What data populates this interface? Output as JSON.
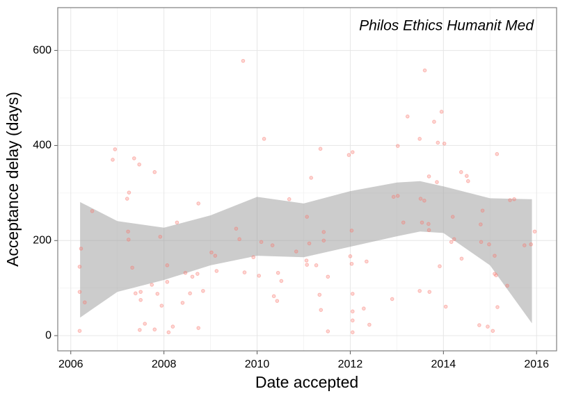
{
  "chart_data": {
    "type": "scatter",
    "annotation": "Philos Ethics Humanit Med",
    "x_label": "Date accepted",
    "y_label": "Acceptance delay (days)",
    "xlim": [
      2005.72,
      2016.43
    ],
    "ylim": [
      -32,
      690
    ],
    "xticks": [
      2006,
      2008,
      2010,
      2012,
      2014,
      2016
    ],
    "yticks": [
      0,
      200,
      400,
      600
    ],
    "x_minor_ticks": [
      2007,
      2009,
      2011,
      2013,
      2015
    ],
    "y_minor_ticks": [
      100,
      300,
      500
    ],
    "grid": true,
    "color": "#f8766d",
    "x": [
      2006.19,
      2006.19,
      2006.22,
      2006.19,
      2006.3,
      2006.46,
      2006.9,
      2006.95,
      2007.21,
      2007.25,
      2007.23,
      2007.24,
      2007.32,
      2007.36,
      2007.39,
      2007.47,
      2007.48,
      2007.5,
      2007.5,
      2007.59,
      2007.74,
      2007.8,
      2007.8,
      2007.86,
      2007.92,
      2007.95,
      2008.07,
      2008.07,
      2008.1,
      2008.19,
      2008.28,
      2008.4,
      2008.46,
      2008.56,
      2008.61,
      2008.72,
      2008.74,
      2008.74,
      2008.84,
      2009.02,
      2009.1,
      2009.13,
      2009.55,
      2009.62,
      2009.7,
      2009.73,
      2009.92,
      2010.04,
      2010.09,
      2010.15,
      2010.33,
      2010.36,
      2010.43,
      2010.45,
      2010.52,
      2010.69,
      2010.84,
      2011.07,
      2011.06,
      2011.07,
      2011.12,
      2011.16,
      2011.27,
      2011.34,
      2011.36,
      2011.37,
      2011.43,
      2011.43,
      2011.52,
      2011.52,
      2011.97,
      2012.0,
      2012.03,
      2012.05,
      2012.03,
      2012.05,
      2012.05,
      2012.05,
      2012.05,
      2012.29,
      2012.35,
      2012.41,
      2012.9,
      2012.93,
      2013.02,
      2013.02,
      2013.14,
      2013.23,
      2013.49,
      2013.49,
      2013.51,
      2013.59,
      2013.54,
      2013.6,
      2013.69,
      2013.68,
      2013.69,
      2013.7,
      2013.8,
      2013.86,
      2013.88,
      2013.92,
      2013.96,
      2014.02,
      2014.05,
      2014.17,
      2014.2,
      2014.23,
      2014.38,
      2014.39,
      2014.5,
      2014.53,
      2014.77,
      2014.8,
      2014.81,
      2014.84,
      2014.95,
      2014.98,
      2015.06,
      2015.1,
      2015.13,
      2015.1,
      2015.15,
      2015.16,
      2015.37,
      2015.43,
      2015.52,
      2015.74,
      2015.88,
      2015.96
    ],
    "values": [
      10,
      145,
      183,
      92,
      70,
      262,
      370,
      392,
      288,
      301,
      219,
      202,
      143,
      373,
      89,
      360,
      12,
      92,
      75,
      25,
      107,
      344,
      13,
      88,
      208,
      63,
      148,
      113,
      7,
      19,
      238,
      69,
      132,
      89,
      124,
      130,
      278,
      16,
      94,
      175,
      168,
      136,
      225,
      203,
      578,
      133,
      165,
      126,
      197,
      414,
      190,
      83,
      73,
      132,
      115,
      287,
      177,
      250,
      158,
      149,
      194,
      332,
      148,
      86,
      393,
      54,
      218,
      200,
      124,
      9,
      380,
      167,
      221,
      386,
      151,
      88,
      51,
      32,
      7,
      57,
      156,
      23,
      77,
      292,
      294,
      399,
      238,
      461,
      414,
      94,
      288,
      284,
      238,
      558,
      335,
      235,
      222,
      92,
      450,
      323,
      406,
      146,
      471,
      404,
      61,
      197,
      250,
      203,
      344,
      162,
      336,
      325,
      22,
      234,
      197,
      263,
      19,
      192,
      10,
      130,
      127,
      168,
      382,
      60,
      105,
      285,
      287,
      190,
      192,
      219
    ],
    "band": {
      "color": "#999999",
      "x": [
        2006.2,
        2007,
        2008,
        2009,
        2010,
        2011,
        2012,
        2013,
        2013.5,
        2014,
        2015,
        2015.9
      ],
      "lower": [
        38,
        92,
        117,
        148,
        168,
        165,
        187,
        209,
        219,
        216,
        148,
        26
      ],
      "upper": [
        281,
        241,
        227,
        253,
        292,
        278,
        304,
        322,
        325,
        314,
        289,
        287
      ]
    }
  }
}
